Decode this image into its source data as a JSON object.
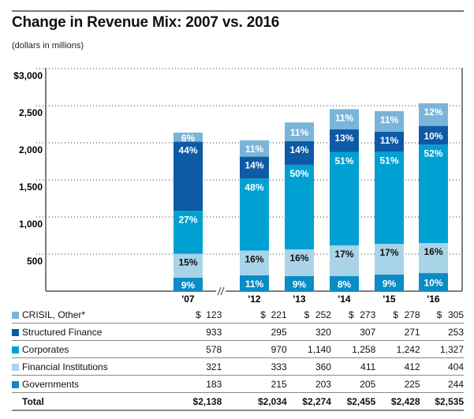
{
  "title": "Change in Revenue Mix: 2007 vs. 2016",
  "subtitle": "(dollars in millions)",
  "chart_data": {
    "type": "bar",
    "stacked": true,
    "title": "Change in Revenue Mix: 2007 vs. 2016",
    "ylabel": "(dollars in millions)",
    "ylim": [
      0,
      3000
    ],
    "yticks": [
      "$3,000",
      "2,500",
      "2,000",
      "1,500",
      "1,000",
      "500"
    ],
    "grid": "dotted horizontal",
    "axis_break": "between '07 and '12",
    "categories": [
      "'07",
      "'12",
      "'13",
      "'14",
      "'15",
      "'16"
    ],
    "series": [
      {
        "name": "Governments",
        "color": "#0a8cc4",
        "values": [
          183,
          215,
          203,
          205,
          225,
          244
        ],
        "labels": [
          "9%",
          "11%",
          "9%",
          "8%",
          "9%",
          "10%"
        ],
        "display": [
          "183",
          "215",
          "203",
          "205",
          "225",
          "244"
        ],
        "label_color": "#ffffff"
      },
      {
        "name": "Financial Institutions",
        "color": "#a9d4e8",
        "values": [
          321,
          333,
          360,
          411,
          412,
          404
        ],
        "labels": [
          "15%",
          "16%",
          "16%",
          "17%",
          "17%",
          "16%"
        ],
        "display": [
          "321",
          "333",
          "360",
          "411",
          "412",
          "404"
        ],
        "label_color": "#111111"
      },
      {
        "name": "Corporates",
        "color": "#00a1d2",
        "values": [
          578,
          970,
          1140,
          1258,
          1242,
          1327
        ],
        "labels": [
          "27%",
          "48%",
          "50%",
          "51%",
          "51%",
          "52%"
        ],
        "display": [
          "578",
          "970",
          "1,140",
          "1,258",
          "1,242",
          "1,327"
        ],
        "label_color": "#ffffff"
      },
      {
        "name": "Structured Finance",
        "color": "#0d5aa6",
        "values": [
          933,
          295,
          320,
          307,
          271,
          253
        ],
        "labels": [
          "44%",
          "14%",
          "14%",
          "13%",
          "11%",
          "10%"
        ],
        "display": [
          "933",
          "295",
          "320",
          "307",
          "271",
          "253"
        ],
        "label_color": "#ffffff"
      },
      {
        "name": "CRISIL, Other*",
        "color": "#7ab5d9",
        "values": [
          123,
          221,
          252,
          273,
          278,
          305
        ],
        "labels": [
          "6%",
          "11%",
          "11%",
          "11%",
          "11%",
          "12%"
        ],
        "display": [
          "$  123",
          "$  221",
          "$  252",
          "$  273",
          "$  278",
          "$  305"
        ],
        "label_color": "#ffffff"
      }
    ],
    "table_order": [
      "CRISIL, Other*",
      "Structured Finance",
      "Corporates",
      "Financial Institutions",
      "Governments"
    ],
    "total_label": "Total",
    "totals": [
      "$2,138",
      "$2,034",
      "$2,274",
      "$2,455",
      "$2,428",
      "$2,535"
    ]
  }
}
